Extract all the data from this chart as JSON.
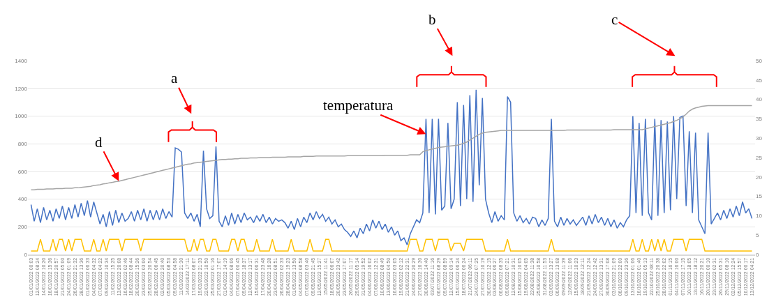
{
  "chart_data": {
    "type": "line",
    "grid": "y",
    "marker": "none",
    "line_style": "solid",
    "ylim": [
      0,
      1400
    ],
    "yticks": [
      0,
      200,
      400,
      600,
      800,
      1000,
      1200,
      1400
    ],
    "y2lim": [
      0,
      50
    ],
    "y2ticks": [
      0,
      5,
      10,
      15,
      20,
      25,
      30,
      35,
      40,
      45,
      50
    ],
    "annotations": [
      "a",
      "b",
      "c",
      {
        "text": "d",
        "x": "13/02/2022 20:08",
        "y": 530
      },
      {
        "text": "temperatura",
        "x": "30/06/2022 14:40",
        "y": 870
      }
    ],
    "categories": [
      "01/01/2022 00:03",
      null,
      "12/01/2022 08:24",
      null,
      "14/01/2022 10:20",
      null,
      "16/01/2022 15:36",
      null,
      "18/01/2022 20:57",
      null,
      "21/01/2022 05:00",
      null,
      "24/01/2022 01:09",
      null,
      "26/01/2022 21:32",
      null,
      "28/01/2022 13:36",
      null,
      "01/02/2022 06:33",
      null,
      "04/02/2022 04:32",
      null,
      "07/02/2022 04:22",
      null,
      "09/02/2022 10:34",
      null,
      "11/02/2022 15:25",
      null,
      "13/02/2022 20:08",
      null,
      "16/02/2022 02:46",
      null,
      "18/02/2022 08:44",
      null,
      "20/02/2022 15:26",
      null,
      "23/02/2022 03:00",
      null,
      "25/02/2022 20:54",
      null,
      "28/02/2022 06:45",
      null,
      "02/03/2022 20:40",
      null,
      "05/03/2022 08:53",
      null,
      "09/03/2022 04:58",
      null,
      "11/03/2022 21:30",
      null,
      "14/03/2022 17:11",
      null,
      "17/03/2022 08:07",
      null,
      "19/03/2022 21:33",
      null,
      "22/03/2022 10:50",
      null,
      "25/03/2022 01:16",
      null,
      "27/03/2022 17:07",
      null,
      "01/04/2022 14:19",
      null,
      "04/04/2022 08:06",
      null,
      "07/04/2022 00:45",
      null,
      "09/04/2022 18:37",
      null,
      "12/04/2022 13:17",
      null,
      "15/04/2022 06:31",
      null,
      "17/04/2022 23:48",
      null,
      "20/04/2022 16:28",
      null,
      "23/04/2022 08:51",
      null,
      "26/04/2022 02:33",
      null,
      "28/04/2022 19:23",
      null,
      "01/05/2022 13:50",
      null,
      "04/05/2022 08:58",
      null,
      "07/05/2022 03:40",
      null,
      "09/05/2022 21:45",
      null,
      "12/05/2022 15:27",
      null,
      "15/05/2022 11:41",
      null,
      "18/05/2022 06:07",
      null,
      "20/05/2022 23:42",
      null,
      "23/05/2022 17:07",
      null,
      "26/05/2022 11:17",
      null,
      "29/05/2022 05:14",
      null,
      "31/05/2022 19:52",
      null,
      "04/06/2022 16:02",
      null,
      "07/06/2022 12:31",
      null,
      "10/06/2022 08:49",
      null,
      "13/06/2022 04:50",
      null,
      "16/06/2022 03:05",
      null,
      "19/06/2022 02:12",
      null,
      "21/06/2022 22:31",
      null,
      "24/06/2022 20:29",
      null,
      "27/06/2022 16:30",
      null,
      "30/06/2022 14:40",
      null,
      "03/07/2022 11:16",
      null,
      "06/07/2022 08:29",
      null,
      "09/07/2022 08:59",
      null,
      "12/07/2022 09:14",
      null,
      "15/07/2022 06:24",
      null,
      "18/07/2022 06:24",
      null,
      "21/07/2022 06:11",
      null,
      "24/07/2022 07:25",
      null,
      "27/07/2022 10:19",
      null,
      "30/07/2022 12:15",
      null,
      "03/08/2022 06:27",
      null,
      "06/08/2022 08:35",
      null,
      "09/08/2022 07:21",
      null,
      "12/08/2022 10:31",
      null,
      "15/08/2022 10:05",
      null,
      "19/08/2022 04:05",
      null,
      "22/08/2022 11:38",
      null,
      "25/08/2022 10:58",
      null,
      "31/08/2022 11:53",
      null,
      "03/09/2022 13:27",
      null,
      "06/09/2022 13:08",
      null,
      "09/09/2022 11:39",
      null,
      "12/09/2022 11:06",
      null,
      "15/09/2022 10:23",
      null,
      "18/09/2022 12:11",
      null,
      "21/09/2022 12:24",
      null,
      "24/09/2022 12:42",
      null,
      "27/09/2022 13:31",
      null,
      "30/09/2022 17:08",
      null,
      "03/10/2022 21:09",
      null,
      "06/10/2022 22:00",
      null,
      "09/10/2022 23:26",
      null,
      "13/10/2022 01:06",
      null,
      "16/10/2022 01:40",
      null,
      "19/10/2022 05:13",
      null,
      "22/10/2022 08:11",
      null,
      "25/10/2022 20:38",
      null,
      "28/10/2022 22:02",
      null,
      "01/11/2022 16:15",
      null,
      "04/11/2022 16:00",
      null,
      "07/11/2022 17:15",
      null,
      "10/11/2022 18:05",
      null,
      "13/11/2022 18:12",
      null,
      "16/11/2022 20:21",
      null,
      "20/11/2022 00:10",
      null,
      "23/11/2022 02:31",
      null,
      "26/11/2022 05:31",
      null,
      "29/11/2022 08:10",
      null,
      "02/12/2022 12:24",
      null,
      "05/12/2022 15:57",
      null,
      "10/12/2022 00:17",
      null,
      "13/12/2022 04:21"
    ],
    "series": [
      {
        "color": "#ffc000",
        "values": [
          25,
          25,
          25,
          110,
          25,
          25,
          25,
          110,
          25,
          110,
          110,
          25,
          110,
          25,
          110,
          110,
          110,
          25,
          25,
          25,
          110,
          25,
          25,
          110,
          25,
          110,
          110,
          110,
          110,
          25,
          110,
          110,
          110,
          110,
          110,
          25,
          110,
          110,
          110,
          110,
          110,
          110,
          110,
          110,
          110,
          110,
          110,
          110,
          110,
          110,
          25,
          25,
          110,
          25,
          110,
          110,
          25,
          25,
          110,
          110,
          25,
          25,
          25,
          25,
          110,
          110,
          25,
          110,
          110,
          25,
          25,
          25,
          110,
          25,
          25,
          25,
          25,
          110,
          25,
          25,
          25,
          25,
          25,
          110,
          25,
          25,
          25,
          25,
          25,
          110,
          25,
          25,
          25,
          25,
          110,
          110,
          25,
          25,
          25,
          25,
          25,
          25,
          25,
          25,
          25,
          25,
          25,
          25,
          25,
          25,
          25,
          25,
          25,
          25,
          25,
          25,
          25,
          25,
          25,
          25,
          25,
          110,
          110,
          110,
          25,
          25,
          110,
          110,
          110,
          25,
          110,
          110,
          110,
          110,
          25,
          80,
          80,
          80,
          25,
          110,
          110,
          110,
          110,
          110,
          110,
          25,
          25,
          25,
          25,
          25,
          25,
          25,
          110,
          25,
          25,
          25,
          25,
          25,
          25,
          25,
          25,
          25,
          25,
          25,
          25,
          25,
          110,
          25,
          25,
          25,
          25,
          25,
          25,
          25,
          25,
          25,
          25,
          25,
          25,
          25,
          25,
          25,
          25,
          25,
          25,
          25,
          25,
          25,
          25,
          25,
          25,
          25,
          110,
          25,
          25,
          110,
          25,
          25,
          110,
          25,
          110,
          25,
          110,
          25,
          25,
          110,
          110,
          110,
          110,
          25,
          110,
          110,
          110,
          110,
          110,
          25,
          25,
          25,
          25,
          25,
          25,
          25,
          25,
          25,
          25,
          25,
          25,
          25,
          25,
          25,
          25
        ]
      },
      {
        "color": "#a5a5a5",
        "axis": "y2",
        "values": [
          16.7,
          16.7,
          16.8,
          16.8,
          16.8,
          16.9,
          16.9,
          16.9,
          17.0,
          17.0,
          17.0,
          17.1,
          17.1,
          17.1,
          17.2,
          17.2,
          17.3,
          17.4,
          17.5,
          17.6,
          17.8,
          17.9,
          18.0,
          18.2,
          18.3,
          18.5,
          18.6,
          18.8,
          18.9,
          19.1,
          19.3,
          19.5,
          19.7,
          19.9,
          20.1,
          20.3,
          20.5,
          20.7,
          20.9,
          21.1,
          21.3,
          21.5,
          21.7,
          21.9,
          22.1,
          22.3,
          22.5,
          22.7,
          22.9,
          23.1,
          23.3,
          23.4,
          23.6,
          23.7,
          23.8,
          23.9,
          24.0,
          24.1,
          24.2,
          24.3,
          24.4,
          24.5,
          24.5,
          24.6,
          24.6,
          24.7,
          24.7,
          24.8,
          24.8,
          24.8,
          24.9,
          24.9,
          24.9,
          25.0,
          25.0,
          25.0,
          25.0,
          25.1,
          25.1,
          25.1,
          25.1,
          25.1,
          25.2,
          25.2,
          25.2,
          25.2,
          25.2,
          25.3,
          25.3,
          25.3,
          25.3,
          25.4,
          25.4,
          25.4,
          25.4,
          25.4,
          25.4,
          25.4,
          25.4,
          25.4,
          25.4,
          25.5,
          25.5,
          25.5,
          25.5,
          25.5,
          25.5,
          25.5,
          25.5,
          25.5,
          25.5,
          25.5,
          25.5,
          25.6,
          25.6,
          25.6,
          25.6,
          25.6,
          25.6,
          25.6,
          25.6,
          25.7,
          25.7,
          25.7,
          25.7,
          26.5,
          26.8,
          27.0,
          27.2,
          27.4,
          27.6,
          27.7,
          27.8,
          27.9,
          28.0,
          28.1,
          28.2,
          28.4,
          28.7,
          29.0,
          29.5,
          30.0,
          30.5,
          31.0,
          31.3,
          31.5,
          31.6,
          31.7,
          31.8,
          31.9,
          32.0,
          32.0,
          32.0,
          32.0,
          32.0,
          32.0,
          32.0,
          32.0,
          32.0,
          32.0,
          32.0,
          32.0,
          32.0,
          32.0,
          32.0,
          32.0,
          32.0,
          32.0,
          32.0,
          32.0,
          32.0,
          32.1,
          32.1,
          32.1,
          32.1,
          32.1,
          32.1,
          32.1,
          32.1,
          32.1,
          32.1,
          32.1,
          32.1,
          32.1,
          32.1,
          32.1,
          32.2,
          32.2,
          32.2,
          32.2,
          32.2,
          32.2,
          32.2,
          32.2,
          32.2,
          32.2,
          32.4,
          32.6,
          32.8,
          33.0,
          33.2,
          33.4,
          33.6,
          33.8,
          34.0,
          34.3,
          34.6,
          35.0,
          35.5,
          36.2,
          37.0,
          37.5,
          37.8,
          38.0,
          38.2,
          38.3,
          38.4,
          38.4,
          38.4,
          38.4,
          38.4,
          38.4,
          38.4,
          38.4,
          38.4,
          38.4,
          38.4,
          38.4,
          38.4,
          38.4,
          38.4
        ]
      },
      {
        "color": "#4472c4",
        "values": [
          360,
          240,
          330,
          230,
          340,
          250,
          320,
          240,
          330,
          260,
          350,
          250,
          340,
          260,
          360,
          270,
          370,
          280,
          390,
          270,
          380,
          300,
          220,
          290,
          200,
          310,
          210,
          320,
          230,
          300,
          240,
          260,
          310,
          240,
          320,
          250,
          330,
          240,
          320,
          250,
          320,
          250,
          330,
          260,
          310,
          270,
          770,
          760,
          740,
          300,
          260,
          300,
          240,
          290,
          200,
          750,
          330,
          260,
          280,
          780,
          240,
          200,
          280,
          210,
          300,
          220,
          290,
          230,
          300,
          250,
          270,
          230,
          280,
          240,
          290,
          230,
          270,
          220,
          260,
          240,
          250,
          230,
          190,
          240,
          180,
          260,
          200,
          270,
          230,
          300,
          250,
          310,
          260,
          290,
          240,
          270,
          220,
          250,
          200,
          220,
          180,
          160,
          130,
          170,
          120,
          190,
          150,
          220,
          170,
          250,
          190,
          240,
          180,
          220,
          160,
          200,
          140,
          170,
          100,
          120,
          70,
          150,
          200,
          250,
          230,
          300,
          980,
          300,
          980,
          290,
          980,
          320,
          350,
          950,
          330,
          400,
          1100,
          350,
          1080,
          400,
          1150,
          380,
          1190,
          500,
          1130,
          400,
          300,
          230,
          310,
          240,
          280,
          250,
          1140,
          1100,
          300,
          240,
          280,
          230,
          260,
          220,
          270,
          260,
          200,
          250,
          210,
          260,
          980,
          240,
          200,
          270,
          210,
          260,
          220,
          250,
          210,
          240,
          270,
          210,
          280,
          220,
          290,
          230,
          270,
          210,
          260,
          200,
          250,
          190,
          230,
          200,
          250,
          280,
          1000,
          300,
          950,
          280,
          980,
          300,
          250,
          980,
          280,
          970,
          300,
          960,
          320,
          1000,
          400,
          990,
          1000,
          350,
          890,
          300,
          880,
          250,
          200,
          150,
          880,
          220,
          260,
          300,
          250,
          320,
          260,
          330,
          270,
          350,
          280,
          380,
          300,
          330,
          260
        ]
      }
    ]
  }
}
